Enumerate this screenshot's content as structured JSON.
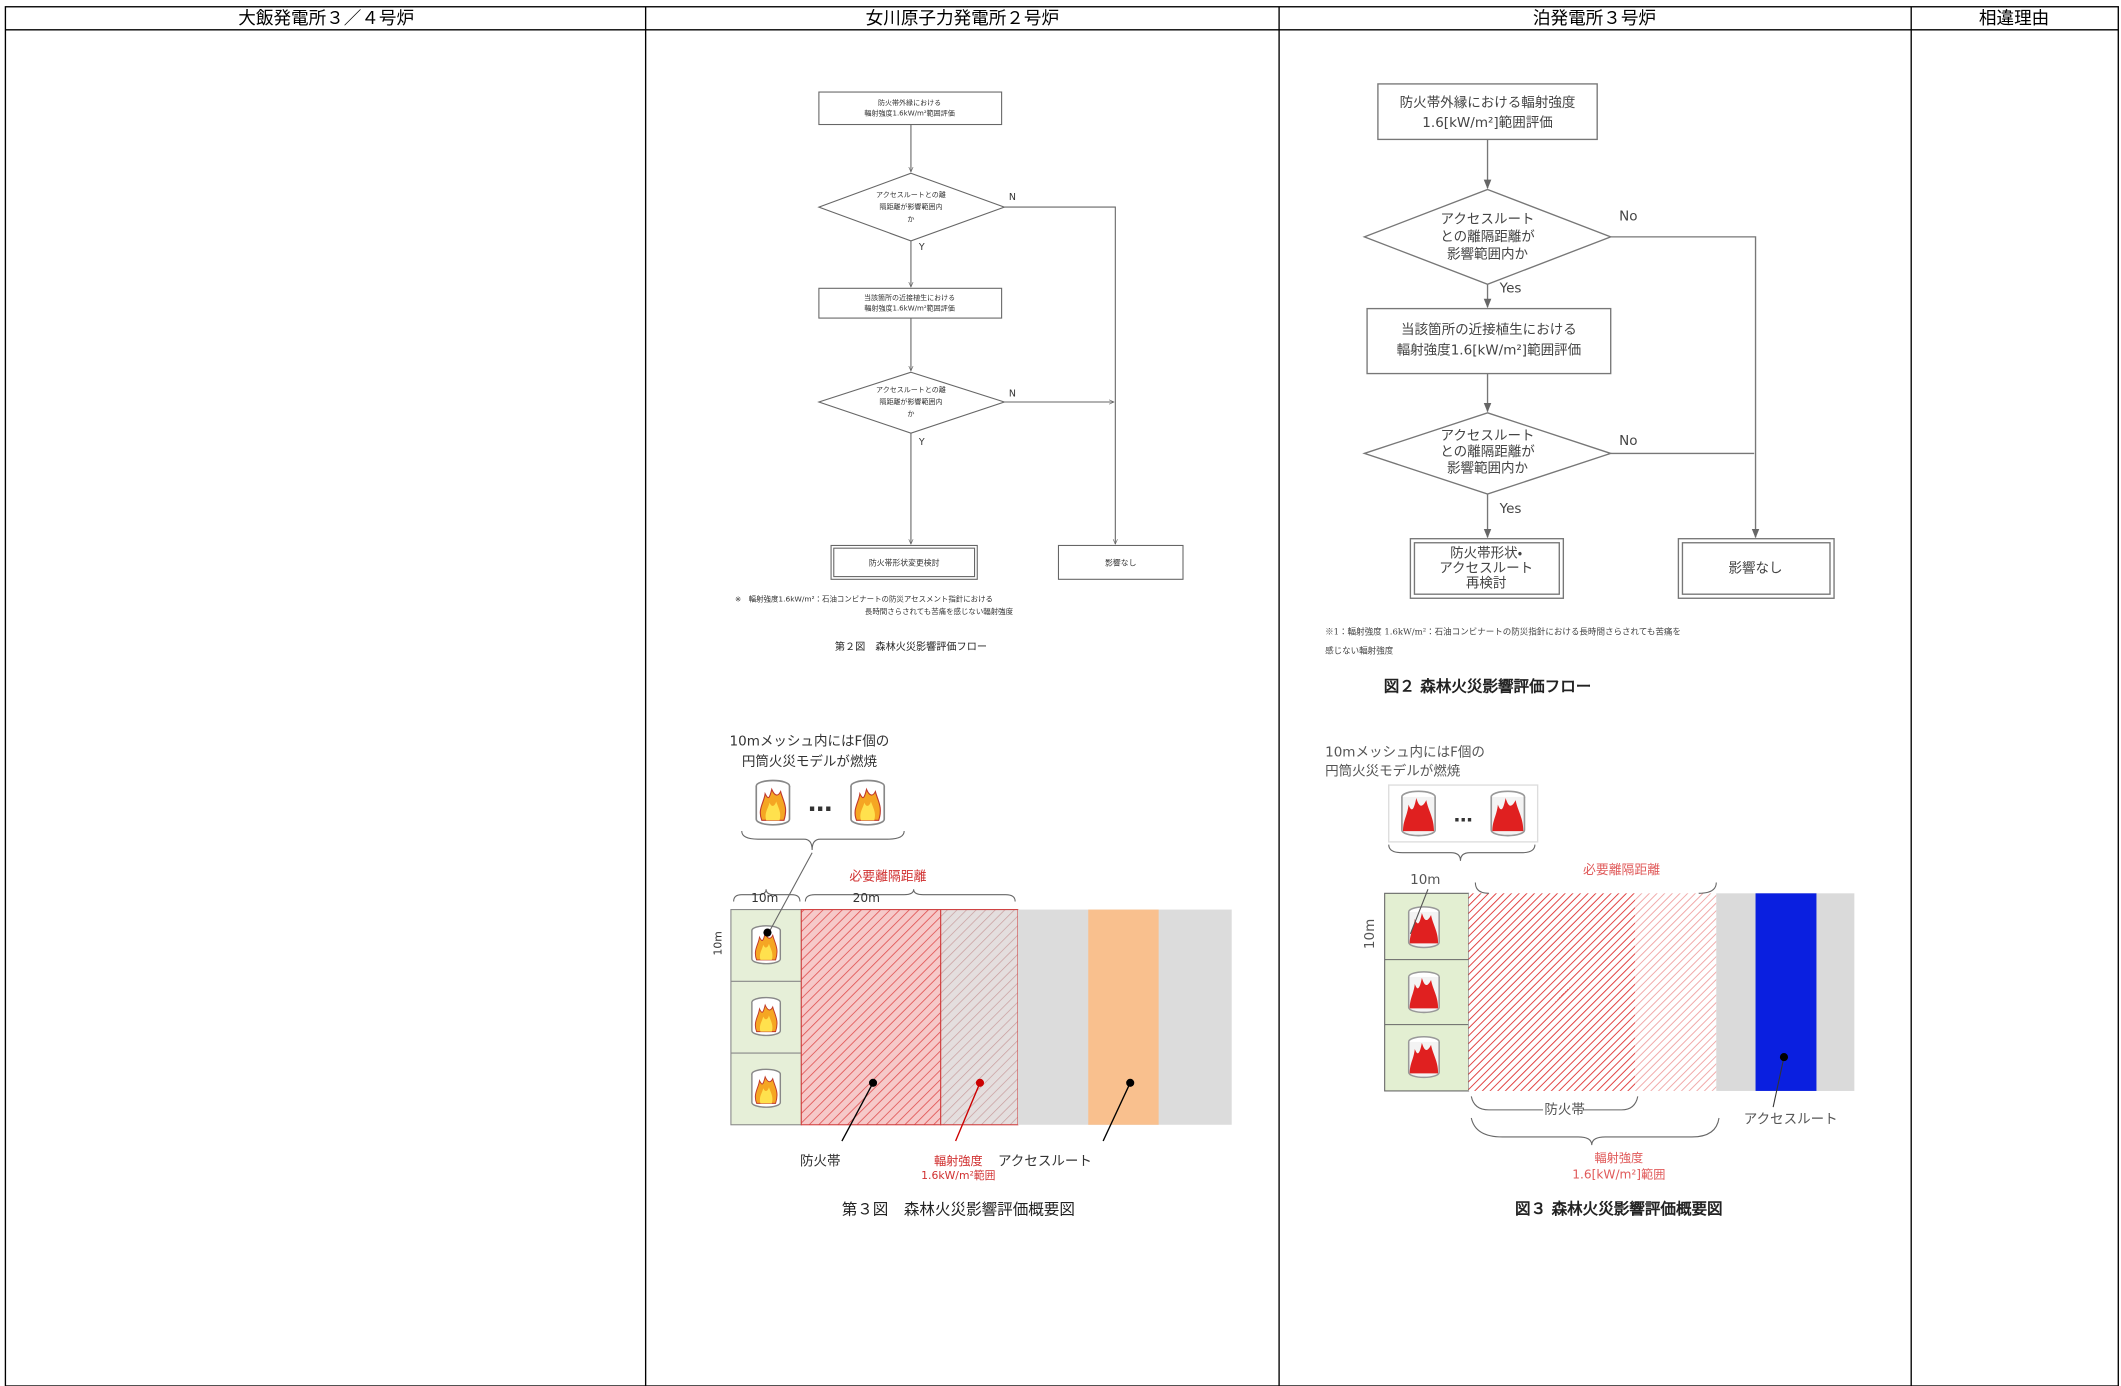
{
  "header": {
    "columns": [
      "大飯発電所３／４号炉",
      "女川原子力発電所２号炉",
      "泊発電所３号炉",
      "相違理由"
    ]
  },
  "onagawa": {
    "flow": {
      "box1": [
        "防火帯外縁における",
        "輻射強度1.6kW/m²範囲評価"
      ],
      "decision1": [
        "アクセスルートとの離",
        "隔距離が影響範囲内",
        "か"
      ],
      "no1": "N",
      "yes1": "Y",
      "box2": [
        "当該箇所の近接植生における",
        "輻射強度1.6kW/m²範囲評価"
      ],
      "decision2": [
        "アクセスルートとの離",
        "隔距離が影響範囲内",
        "か"
      ],
      "no2": "N",
      "yes2": "Y",
      "result1": "防火帯形状変更検討",
      "result2": "影響なし",
      "note": [
        "※　輻射強度1.6kW/m²：石油コンビナートの防災アセスメント指針における",
        "長時間さらされても苦痛を感じない輻射強度"
      ],
      "caption": "第２図　森林火災影響評価フロー"
    },
    "overview": {
      "mesh_note": [
        "10mメッシュ内にはF個の",
        "円筒火災モデルが燃焼"
      ],
      "ellipsis": "…",
      "cell_width": "10m",
      "band_width": "20m",
      "cell_height": "10m",
      "required_distance": "必要離隔距離",
      "firebreak": "防火帯",
      "radiation_range": [
        "輻射強度",
        "1.6kW/m²範囲"
      ],
      "access_route": "アクセスルート",
      "caption": "第３図　森林火災影響評価概要図"
    }
  },
  "tomari": {
    "flow": {
      "box1": [
        "防火帯外縁における輻射強度",
        "1.6[kW/m²]範囲評価"
      ],
      "decision1": [
        "アクセスルート",
        "との離隔距離が",
        "影響範囲内か"
      ],
      "no1": "No",
      "yes1": "Yes",
      "box2": [
        "当該箇所の近接植生における",
        "輻射強度1.6[kW/m²]範囲評価"
      ],
      "decision2": [
        "アクセスルート",
        "との離隔距離が",
        "影響範囲内か"
      ],
      "no2": "No",
      "yes2": "Yes",
      "result1": [
        "防火帯形状・",
        "アクセスルート",
        "再検討"
      ],
      "result2": "影響なし",
      "note": [
        "※1：輻射強度 1.6kW/m²：石油コンビナートの防災指針における長時間さらされても苦痛を",
        "感じない輻射強度"
      ],
      "caption": "図２ 森林火災影響評価フロー"
    },
    "overview": {
      "mesh_note": [
        "10mメッシュ内にはF個の",
        "円筒火災モデルが燃焼"
      ],
      "ellipsis": "…",
      "cell_width": "10m",
      "cell_height": "10m",
      "required_distance": "必要離隔距離",
      "firebreak": "防火帯",
      "radiation_range": [
        "輻射強度",
        "1.6[kW/m²]範囲"
      ],
      "access_route": "アクセスルート",
      "caption": "図３ 森林火災影響評価概要図"
    }
  }
}
